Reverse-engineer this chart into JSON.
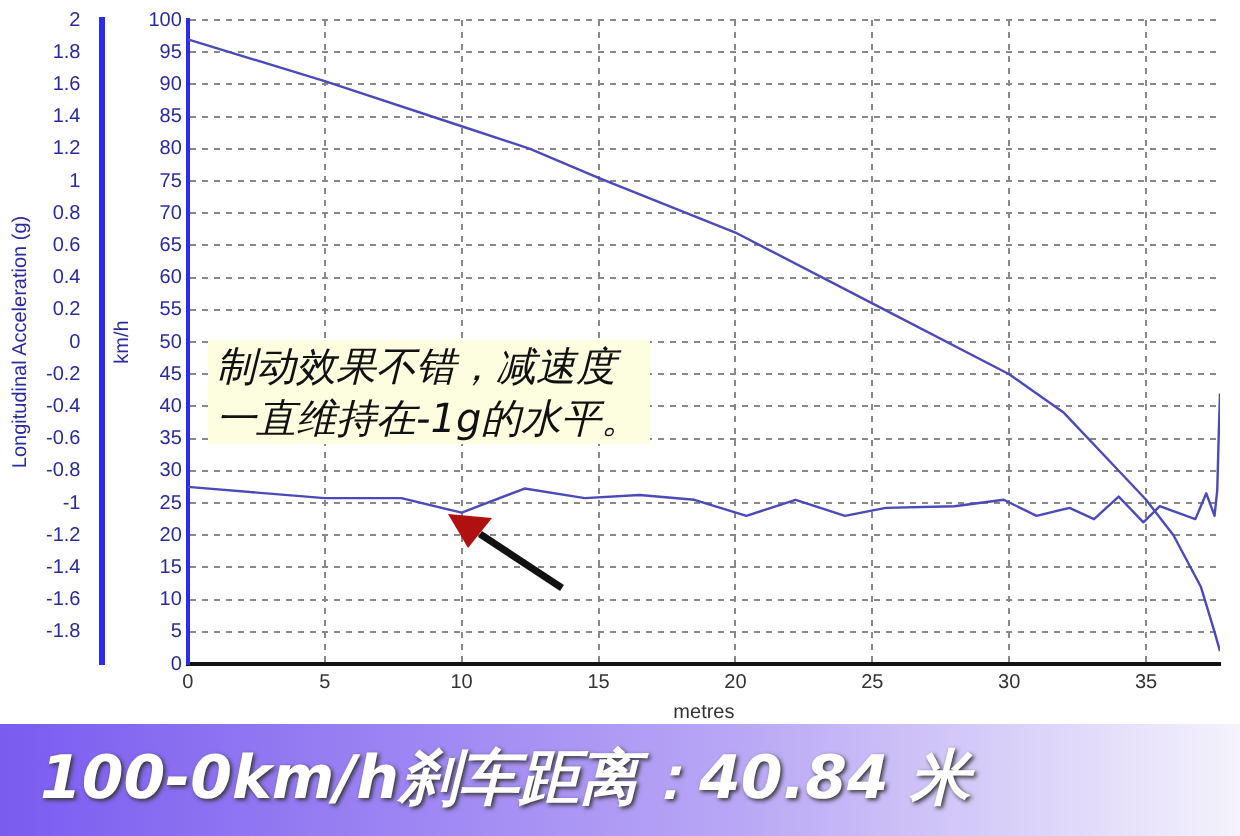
{
  "chart_data": {
    "type": "line",
    "xlabel": "metres",
    "ylabel": "Longitudinal Acceleration (g)",
    "y2label": "km/h",
    "annotations": [
      "制动效果不错，减速度",
      "一直维持在-1g的水平。",
      "100-0km/h刹车距离：40.84 米"
    ],
    "xlim": [
      0,
      37.7
    ],
    "xticks": [
      0,
      5,
      10,
      15,
      20,
      25,
      30,
      35
    ],
    "ylim": [
      -2,
      2
    ],
    "yticks": [
      -1.8,
      -1.6,
      -1.4,
      -1.2,
      -1,
      -0.8,
      -0.6,
      -0.4,
      -0.2,
      0,
      0.2,
      0.4,
      0.6,
      0.8,
      1,
      1.2,
      1.4,
      1.6,
      1.8,
      2
    ],
    "y2lim": [
      0,
      100
    ],
    "y2ticks": [
      0,
      5,
      10,
      15,
      20,
      25,
      30,
      35,
      40,
      45,
      50,
      55,
      60,
      65,
      70,
      75,
      80,
      85,
      90,
      95,
      100
    ],
    "grid": true,
    "legend": false,
    "marker": "none",
    "line_style": "solid",
    "series": [
      {
        "color": "#4a4ab8",
        "axis": "y2",
        "x": [
          0,
          5,
          10,
          12.5,
          15,
          20,
          25,
          30,
          32,
          34,
          35,
          36,
          37,
          37.5,
          37.7
        ],
        "values": [
          97,
          90.5,
          83.5,
          80,
          75.5,
          67,
          56,
          45,
          39,
          30,
          25.5,
          20,
          12,
          5,
          2
        ]
      },
      {
        "color": "#4a4ab8",
        "axis": "y",
        "x": [
          0,
          5,
          7.8,
          10,
          12.3,
          14.5,
          16.5,
          18.5,
          20.4,
          22.2,
          24,
          25.5,
          28,
          29.8,
          31,
          32.2,
          33.1,
          34,
          34.9,
          35.5,
          36.8,
          37.2,
          37.5,
          37.6,
          37.65,
          37.7
        ],
        "values": [
          -0.9,
          -0.97,
          -0.97,
          -1.06,
          -0.91,
          -0.97,
          -0.95,
          -0.98,
          -1.08,
          -0.98,
          -1.08,
          -1.03,
          -1.02,
          -0.98,
          -1.08,
          -1.03,
          -1.1,
          -0.96,
          -1.12,
          -1.02,
          -1.1,
          -0.94,
          -1.08,
          -0.92,
          -0.6,
          -0.32
        ]
      }
    ]
  }
}
